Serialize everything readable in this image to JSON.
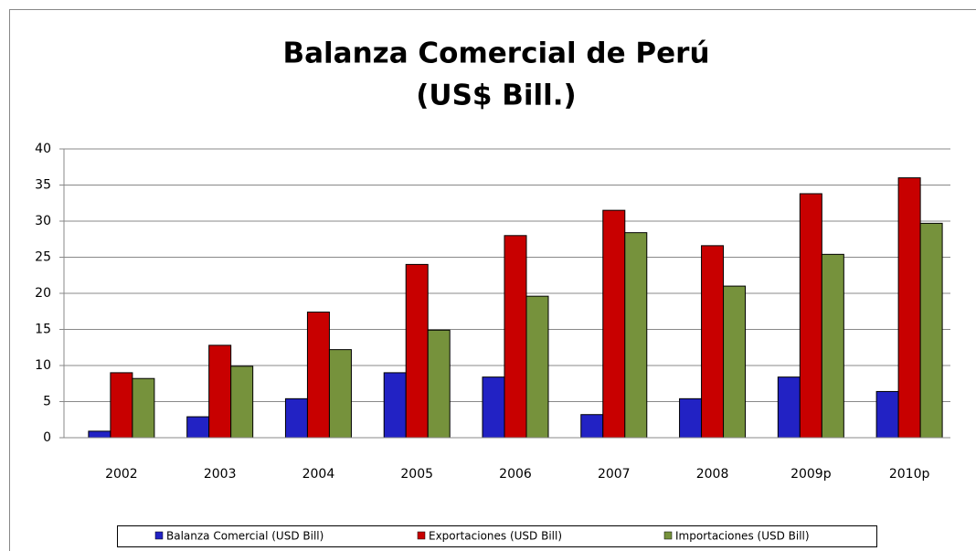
{
  "chart_data": {
    "type": "bar",
    "title": "Balanza Comercial de Perú",
    "subtitle": "(US$ Bill.)",
    "categories": [
      "2002",
      "2003",
      "2004",
      "2005",
      "2006",
      "2007",
      "2008",
      "2009p",
      "2010p"
    ],
    "series": [
      {
        "name": "Balanza Comercial (USD Bill)",
        "color": "#2222c4",
        "values": [
          0.9,
          2.9,
          5.4,
          9.0,
          8.4,
          3.2,
          5.4,
          8.4,
          6.4
        ]
      },
      {
        "name": "Exportaciones (USD Bill)",
        "color": "#c80000",
        "values": [
          9.0,
          12.8,
          17.4,
          24.0,
          28.0,
          31.5,
          26.6,
          33.8,
          36.0
        ]
      },
      {
        "name": "Importaciones (USD Bill)",
        "color": "#76923c",
        "values": [
          8.2,
          9.9,
          12.2,
          14.9,
          19.6,
          28.4,
          21.0,
          25.4,
          29.7
        ]
      }
    ],
    "ylim": [
      0,
      40
    ],
    "yticks": [
      0,
      5,
      10,
      15,
      20,
      25,
      30,
      35,
      40
    ],
    "grid": true,
    "legend": "bottom"
  }
}
